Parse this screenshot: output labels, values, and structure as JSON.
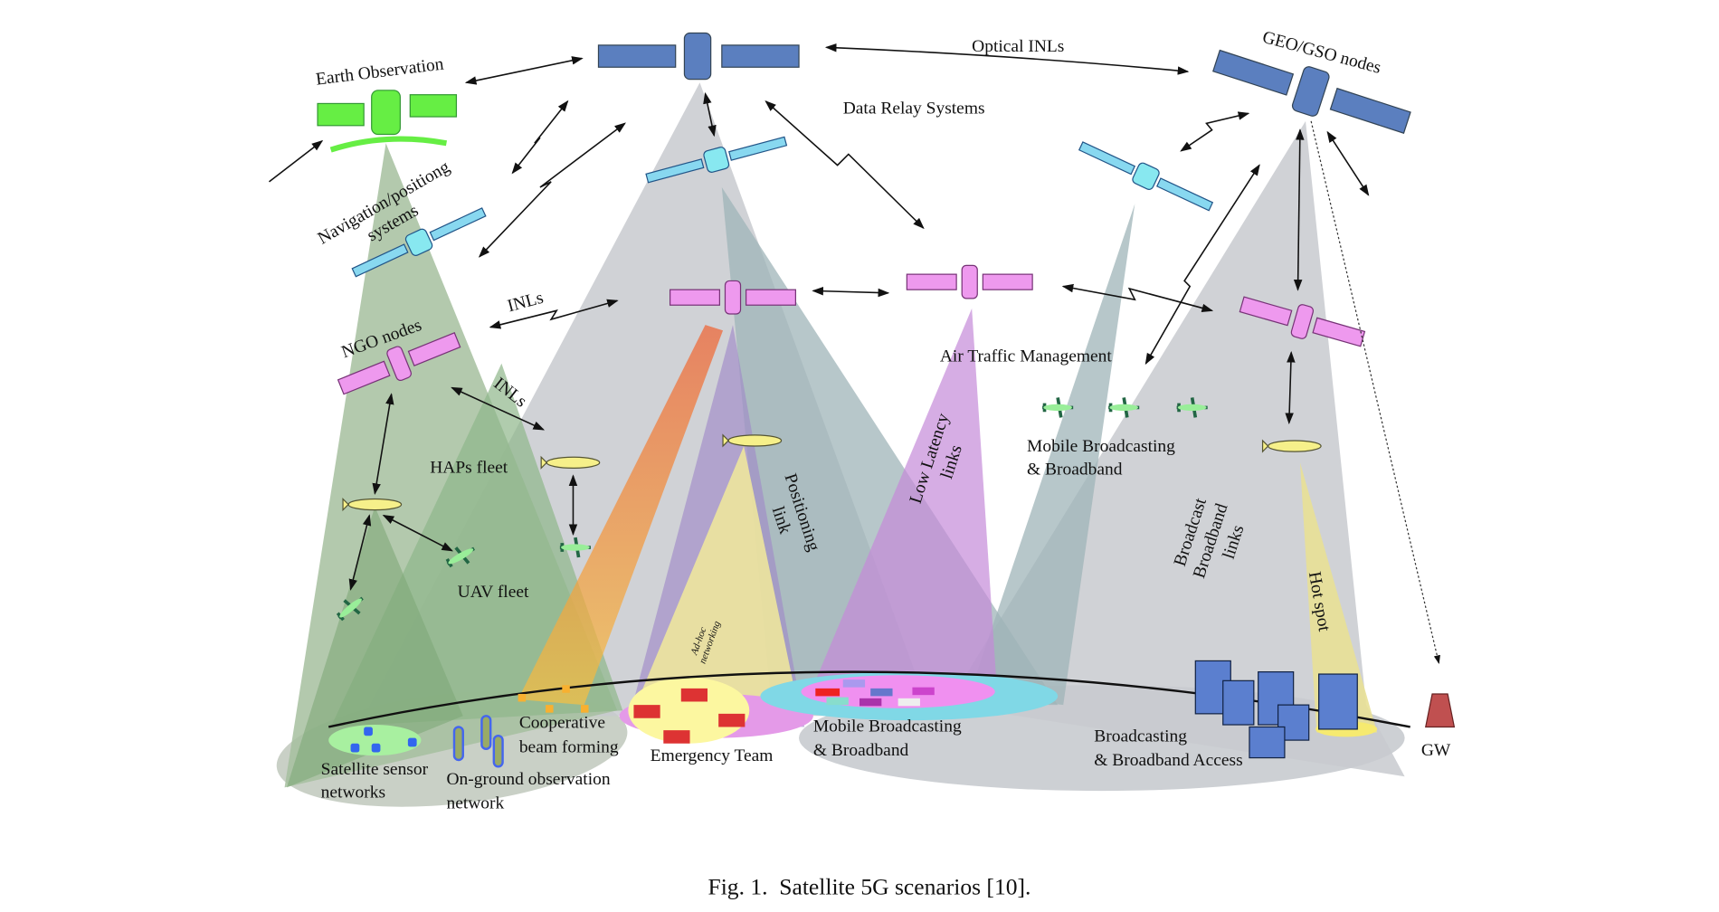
{
  "labels": {
    "earth_observation": "Earth Observation",
    "optical_inls": "Optical INLs",
    "geo_gso_nodes": "GEO/GSO nodes",
    "data_relay": "Data Relay Systems",
    "nav_line1": "Navigation/positiong",
    "nav_line2": "systems",
    "inls_1": "INLs",
    "ngo_nodes": "NGO nodes",
    "inls_2": "INLs",
    "air_traffic": "Air Traffic Management",
    "haps_fleet": "HAPs fleet",
    "mobile_air_1": "Mobile Broadcasting",
    "mobile_air_2": "& Broadband",
    "low_latency_1": "Low Latency",
    "low_latency_2": "links",
    "positioning_1": "Positioning",
    "positioning_2": "link",
    "broadcast_1": "Broadcast",
    "broadcast_2": "Broadband",
    "broadcast_3": "links",
    "uav_fleet": "UAV fleet",
    "hot_spot": "Hot spot",
    "adhoc_1": "Ad-hoc",
    "adhoc_2": "networking",
    "coop_1": "Cooperative",
    "coop_2": "beam forming",
    "mobile_ground_1": "Mobile Broadcasting",
    "mobile_ground_2": "& Broadband",
    "emergency": "Emergency Team",
    "bb_access_1": "Broadcasting",
    "bb_access_2": "& Broadband Access",
    "gw": "GW",
    "sensor_1": "Satellite sensor",
    "sensor_2": "networks",
    "onground_1": "On-ground observation",
    "onground_2": "network"
  },
  "caption": "Fig. 1.  Satellite 5G scenarios [10].",
  "colors": {
    "geo_satellite": "#5b7fbf",
    "eo_satellite": "#66ee44",
    "nav_satellite": "#88e8f0",
    "ngo_satellite": "#ee99ee",
    "gray_beam": "#c8cacf",
    "green_beam": "#8fb68a",
    "purple_beam": "#c58ad8",
    "yellow_beam": "#f2ea9a",
    "orange_beam": "#f07a3a"
  }
}
